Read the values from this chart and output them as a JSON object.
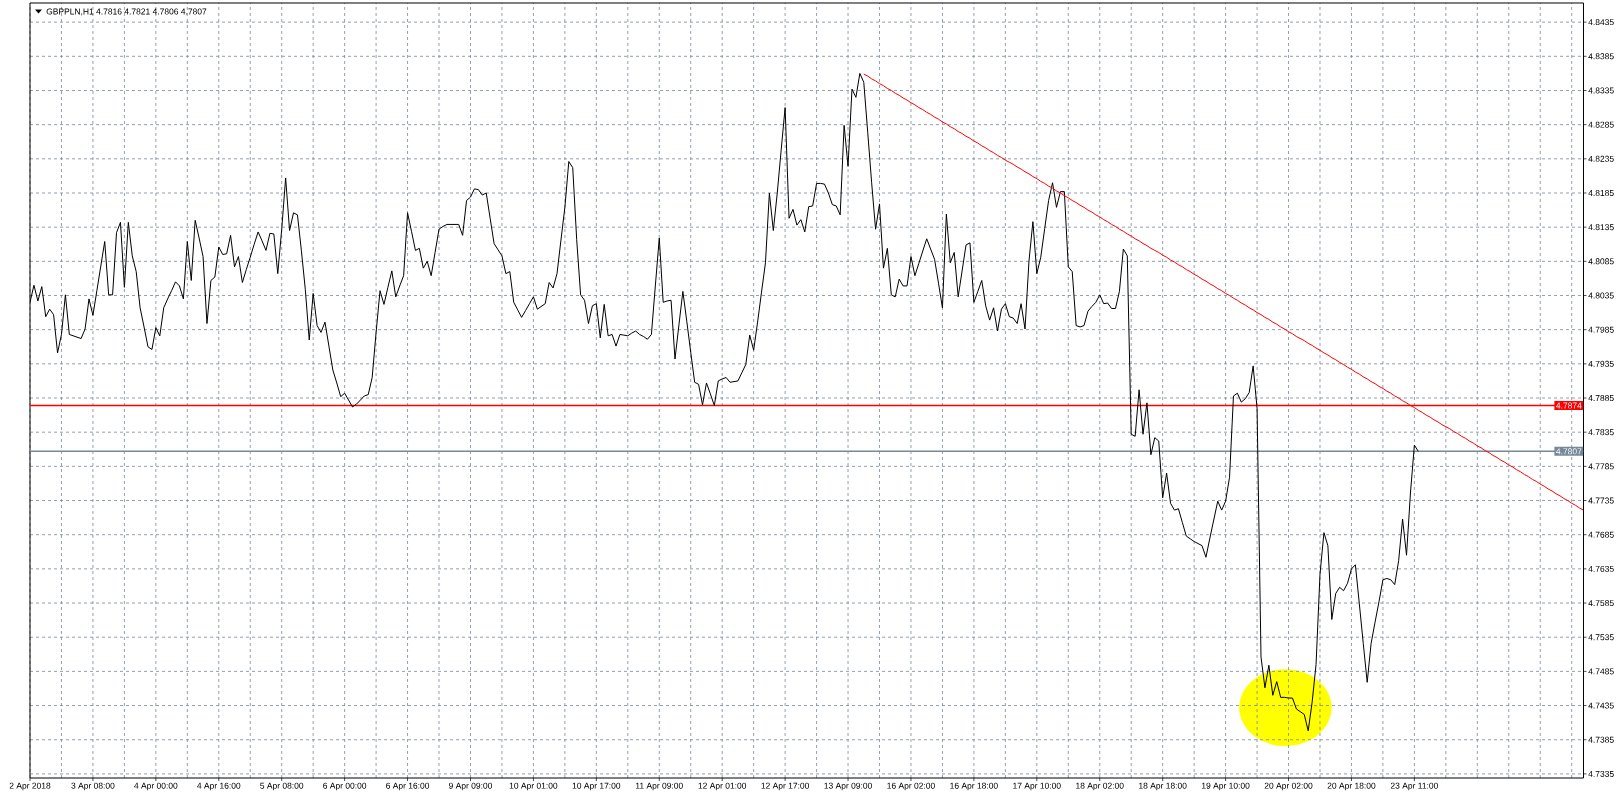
{
  "chart_data": {
    "type": "line",
    "title": "GBPPLN,H1 4.7816 4.7821 4.7806 4.7807",
    "categories": [
      "2 Apr 2018",
      null,
      null,
      null,
      null,
      null,
      null,
      null,
      null,
      null,
      null,
      null,
      null,
      null,
      null,
      null,
      "3 Apr 08:00",
      null,
      null,
      null,
      null,
      null,
      null,
      null,
      null,
      null,
      null,
      null,
      null,
      null,
      null,
      null,
      "4 Apr 00:00",
      null,
      null,
      null,
      null,
      null,
      null,
      null,
      null,
      null,
      null,
      null,
      null,
      null,
      null,
      null,
      "4 Apr 16:00",
      null,
      null,
      null,
      null,
      null,
      null,
      null,
      null,
      null,
      null,
      null,
      null,
      null,
      null,
      null,
      "5 Apr 08:00",
      null,
      null,
      null,
      null,
      null,
      null,
      null,
      null,
      null,
      null,
      null,
      null,
      null,
      null,
      null,
      "6 Apr 00:00",
      null,
      null,
      null,
      null,
      null,
      null,
      null,
      null,
      null,
      null,
      null,
      null,
      null,
      null,
      null,
      "6 Apr 16:00",
      null,
      null,
      null,
      null,
      null,
      null,
      null,
      null,
      null,
      null,
      null,
      null,
      null,
      null,
      null,
      "9 Apr 09:00",
      null,
      null,
      null,
      null,
      null,
      null,
      null,
      null,
      null,
      null,
      null,
      null,
      null,
      null,
      null,
      "10 Apr 01:00",
      null,
      null,
      null,
      null,
      null,
      null,
      null,
      null,
      null,
      null,
      null,
      null,
      null,
      null,
      null,
      "10 Apr 17:00",
      null,
      null,
      null,
      null,
      null,
      null,
      null,
      null,
      null,
      null,
      null,
      null,
      null,
      null,
      null,
      "11 Apr 09:00",
      null,
      null,
      null,
      null,
      null,
      null,
      null,
      null,
      null,
      null,
      null,
      null,
      null,
      null,
      null,
      "12 Apr 01:00",
      null,
      null,
      null,
      null,
      null,
      null,
      null,
      null,
      null,
      null,
      null,
      null,
      null,
      null,
      null,
      "12 Apr 17:00",
      null,
      null,
      null,
      null,
      null,
      null,
      null,
      null,
      null,
      null,
      null,
      null,
      null,
      null,
      null,
      "13 Apr 09:00",
      null,
      null,
      null,
      null,
      null,
      null,
      null,
      null,
      null,
      null,
      null,
      null,
      null,
      null,
      null,
      "16 Apr 02:00",
      null,
      null,
      null,
      null,
      null,
      null,
      null,
      null,
      null,
      null,
      null,
      null,
      null,
      null,
      null,
      "16 Apr 18:00",
      null,
      null,
      null,
      null,
      null,
      null,
      null,
      null,
      null,
      null,
      null,
      null,
      null,
      null,
      null,
      "17 Apr 10:00",
      null,
      null,
      null,
      null,
      null,
      null,
      null,
      null,
      null,
      null,
      null,
      null,
      null,
      null,
      null,
      "18 Apr 02:00",
      null,
      null,
      null,
      null,
      null,
      null,
      null,
      null,
      null,
      null,
      null,
      null,
      null,
      null,
      null,
      "18 Apr 18:00",
      null,
      null,
      null,
      null,
      null,
      null,
      null,
      null,
      null,
      null,
      null,
      null,
      null,
      null,
      null,
      "19 Apr 10:00",
      null,
      null,
      null,
      null,
      null,
      null,
      null,
      null,
      null,
      null,
      null,
      null,
      null,
      null,
      null,
      "20 Apr 02:00",
      null,
      null,
      null,
      null,
      null,
      null,
      null,
      null,
      null,
      null,
      null,
      null,
      null,
      null,
      null,
      "20 Apr 18:00",
      null,
      null,
      null,
      null,
      null,
      null,
      null,
      null,
      null,
      null,
      null,
      null,
      null,
      null,
      null,
      "23 Apr 11:00",
      null,
      null,
      null,
      null,
      null,
      null,
      null,
      null,
      null,
      null,
      null,
      null,
      null,
      null,
      null,
      null,
      null,
      null,
      null,
      null,
      null,
      null,
      null,
      null,
      null,
      null,
      null,
      null,
      null,
      null,
      null,
      null,
      null,
      null,
      null,
      null,
      null,
      null,
      null,
      null,
      null,
      null,
      null
    ],
    "ylim": [
      4.7329,
      4.8463
    ],
    "yticks": [
      4.7335,
      4.7385,
      4.7435,
      4.7485,
      4.7535,
      4.7585,
      4.7635,
      4.7685,
      4.7735,
      4.7785,
      4.7835,
      4.7885,
      4.7935,
      4.7985,
      4.8035,
      4.8085,
      4.8135,
      4.8185,
      4.8235,
      4.8285,
      4.8335,
      4.8385,
      4.8435
    ],
    "grid": true,
    "ref_lines": [
      {
        "axis": "y",
        "value": 4.7874,
        "label": "4.7874",
        "color": "#ff0000"
      },
      {
        "axis": "y",
        "value": 4.7807,
        "label": "4.7807",
        "color": "#778899"
      }
    ],
    "series": [
      {
        "color": "#000000",
        "values": [
          4.8025,
          4.805,
          4.8027,
          4.8048,
          4.8004,
          4.8015,
          4.8007,
          4.7951,
          4.7978,
          4.8036,
          4.7978,
          4.7976,
          4.7974,
          4.7972,
          4.7986,
          4.803,
          4.8006,
          4.8042,
          4.8078,
          4.8114,
          4.8036,
          4.8036,
          4.8127,
          4.8142,
          4.8047,
          4.8142,
          4.8093,
          4.807,
          4.8017,
          4.7989,
          4.796,
          4.7956,
          4.7988,
          4.7976,
          4.8017,
          4.803,
          4.8042,
          4.8055,
          4.8049,
          4.803,
          4.8114,
          4.8057,
          4.8145,
          4.8119,
          4.8092,
          4.7994,
          4.8057,
          4.8062,
          4.8106,
          4.8095,
          4.8096,
          4.8123,
          4.8077,
          4.8092,
          4.8054,
          4.8073,
          4.8091,
          4.811,
          4.8128,
          4.8115,
          4.8101,
          4.8126,
          4.8125,
          4.8067,
          4.8132,
          4.8207,
          4.813,
          4.8156,
          4.8153,
          4.8101,
          4.8044,
          4.797,
          4.8038,
          4.7991,
          4.7981,
          4.7996,
          4.7961,
          4.7926,
          4.7907,
          4.7887,
          4.7892,
          4.7882,
          4.7872,
          4.7876,
          4.7882,
          4.7888,
          4.789,
          4.7915,
          4.7981,
          4.8042,
          4.8022,
          4.8047,
          4.8071,
          4.8033,
          4.8049,
          4.8064,
          4.8156,
          4.8129,
          4.8101,
          4.8104,
          4.8075,
          4.8085,
          4.8064,
          4.8098,
          4.8132,
          4.8136,
          4.8139,
          4.8139,
          4.8139,
          4.8139,
          4.8123,
          4.8174,
          4.8179,
          4.8191,
          4.819,
          4.8182,
          4.8185,
          4.8148,
          4.8111,
          4.8102,
          4.8093,
          4.8067,
          4.807,
          4.8025,
          4.8014,
          4.8003,
          4.8013,
          4.8023,
          4.8033,
          4.8015,
          4.8019,
          4.8023,
          4.8054,
          4.8046,
          4.8067,
          4.8116,
          4.8164,
          4.8231,
          4.8222,
          4.8117,
          4.8036,
          4.8028,
          4.7994,
          4.802,
          4.8023,
          4.7973,
          4.8022,
          4.7976,
          4.7978,
          4.7961,
          4.7978,
          4.7977,
          4.7976,
          4.798,
          4.7983,
          4.7978,
          4.7975,
          4.7971,
          4.7978,
          4.8049,
          4.8119,
          4.8025,
          4.8027,
          4.8028,
          4.7942,
          4.7992,
          4.8041,
          4.7997,
          4.7952,
          4.7908,
          4.7905,
          4.7875,
          4.7907,
          4.7891,
          4.7874,
          4.791,
          4.7913,
          4.7915,
          4.7908,
          4.7909,
          4.791,
          4.7922,
          4.7934,
          4.7977,
          4.7955,
          4.7996,
          4.804,
          4.8083,
          4.8185,
          4.813,
          4.8185,
          4.8248,
          4.831,
          4.8148,
          4.8161,
          4.8138,
          4.8146,
          4.8128,
          4.8165,
          4.8166,
          4.8199,
          4.8199,
          4.8198,
          4.8185,
          4.8168,
          4.8166,
          4.8153,
          4.8284,
          4.8224,
          4.8337,
          4.8325,
          4.836,
          4.8347,
          4.8274,
          4.82,
          4.8132,
          4.8169,
          4.8075,
          4.8104,
          4.8036,
          4.8033,
          4.8059,
          4.8049,
          4.8049,
          4.8092,
          4.8064,
          4.8082,
          4.81,
          4.8118,
          4.8103,
          4.8088,
          4.8053,
          4.8017,
          4.8154,
          4.8083,
          4.8098,
          4.8033,
          4.8071,
          4.8109,
          4.8112,
          4.8025,
          4.8041,
          4.8057,
          4.802,
          4.7999,
          4.8017,
          4.7983,
          4.8015,
          4.8023,
          4.8004,
          4.8002,
          4.7994,
          4.8023,
          4.7986,
          4.8085,
          4.8143,
          4.8067,
          4.8091,
          4.8133,
          4.8174,
          4.82,
          4.8164,
          4.8187,
          4.8187,
          4.8077,
          4.807,
          4.7991,
          4.7989,
          4.7991,
          4.8012,
          4.8019,
          4.8025,
          4.8036,
          4.8023,
          4.8024,
          4.8016,
          4.8016,
          4.8041,
          4.8103,
          4.8093,
          4.7832,
          4.7829,
          4.7897,
          4.7832,
          4.7878,
          4.7802,
          4.7827,
          4.7822,
          4.7739,
          4.7775,
          4.7731,
          4.7721,
          4.7723,
          4.7703,
          4.7683,
          4.7679,
          4.7675,
          4.7672,
          4.7669,
          4.7652,
          4.768,
          4.7707,
          4.7734,
          4.7721,
          4.7734,
          4.7769,
          4.7888,
          4.7892,
          4.7879,
          4.7884,
          4.7893,
          4.7932,
          4.787,
          4.7506,
          4.7461,
          4.7494,
          4.745,
          4.747,
          4.7447,
          4.7447,
          4.7446,
          4.7446,
          4.743,
          4.7426,
          4.7422,
          4.7398,
          4.744,
          4.7495,
          4.7627,
          4.7688,
          4.7669,
          4.7561,
          4.7599,
          4.7608,
          4.7603,
          4.7614,
          4.7635,
          4.7641,
          4.7584,
          4.7526,
          4.7469,
          4.7526,
          4.7557,
          4.7587,
          4.7619,
          4.7621,
          4.7619,
          4.7612,
          4.7647,
          4.7708,
          4.7655,
          4.7746,
          4.7816,
          4.7807,
          null,
          null,
          null,
          null,
          null,
          null,
          null,
          null,
          null,
          null,
          null,
          null,
          null,
          null,
          null,
          null,
          null,
          null,
          null,
          null,
          null,
          null,
          null,
          null,
          null,
          null,
          null,
          null,
          null,
          null,
          null,
          null,
          null,
          null,
          null,
          null,
          null,
          null,
          null,
          null,
          null,
          null
        ]
      },
      {
        "color": "#ff0000",
        "values": [
          null,
          null,
          null,
          null,
          null,
          null,
          null,
          null,
          null,
          null,
          null,
          null,
          null,
          null,
          null,
          null,
          null,
          null,
          null,
          null,
          null,
          null,
          null,
          null,
          null,
          null,
          null,
          null,
          null,
          null,
          null,
          null,
          null,
          null,
          null,
          null,
          null,
          null,
          null,
          null,
          null,
          null,
          null,
          null,
          null,
          null,
          null,
          null,
          null,
          null,
          null,
          null,
          null,
          null,
          null,
          null,
          null,
          null,
          null,
          null,
          null,
          null,
          null,
          null,
          null,
          null,
          null,
          null,
          null,
          null,
          null,
          null,
          null,
          null,
          null,
          null,
          null,
          null,
          null,
          null,
          null,
          null,
          null,
          null,
          null,
          null,
          null,
          null,
          null,
          null,
          null,
          null,
          null,
          null,
          null,
          null,
          null,
          null,
          null,
          null,
          null,
          null,
          null,
          null,
          null,
          null,
          null,
          null,
          null,
          null,
          null,
          null,
          null,
          null,
          null,
          null,
          null,
          null,
          null,
          null,
          null,
          null,
          null,
          null,
          null,
          null,
          null,
          null,
          null,
          null,
          null,
          null,
          null,
          null,
          null,
          null,
          null,
          null,
          null,
          null,
          null,
          null,
          null,
          null,
          null,
          null,
          null,
          null,
          null,
          null,
          null,
          null,
          null,
          null,
          null,
          null,
          null,
          null,
          null,
          null,
          null,
          null,
          null,
          null,
          null,
          null,
          null,
          null,
          null,
          null,
          null,
          null,
          null,
          null,
          null,
          null,
          null,
          null,
          null,
          null,
          null,
          null,
          null,
          null,
          null,
          null,
          null,
          null,
          null,
          null,
          null,
          null,
          null,
          null,
          null,
          null,
          null,
          null,
          null,
          null,
          null,
          null,
          null,
          null,
          null,
          null,
          null,
          null,
          null,
          null,
          null,
          null,
          4.8359,
          4.8356,
          4.8352,
          4.8349,
          4.8345,
          4.8342,
          4.8338,
          4.8335,
          4.8331,
          4.8328,
          4.8324,
          4.8321,
          4.8317,
          4.8314,
          4.831,
          4.8307,
          4.8303,
          4.83,
          4.8296,
          4.8293,
          4.8289,
          4.8286,
          4.8282,
          4.8279,
          4.8275,
          4.8272,
          4.8268,
          4.8265,
          4.8261,
          4.8258,
          4.8254,
          4.8251,
          4.8247,
          4.8244,
          4.824,
          4.8237,
          4.8233,
          4.823,
          4.8227,
          4.8223,
          4.822,
          4.8216,
          4.8213,
          4.8209,
          4.8206,
          4.8202,
          4.8199,
          4.8195,
          4.8192,
          4.8188,
          4.8185,
          4.8181,
          4.8178,
          4.8174,
          4.8171,
          4.8167,
          4.8164,
          4.816,
          4.8157,
          4.8153,
          4.815,
          4.8146,
          4.8143,
          4.8139,
          4.8136,
          4.8132,
          4.8129,
          4.8125,
          4.8122,
          4.8118,
          4.8115,
          4.8111,
          4.8108,
          4.8104,
          4.8101,
          4.8098,
          4.8094,
          4.8091,
          4.8087,
          4.8084,
          4.808,
          4.8077,
          4.8073,
          4.807,
          4.8066,
          4.8063,
          4.8059,
          4.8056,
          4.8052,
          4.8049,
          4.8045,
          4.8042,
          4.8038,
          4.8035,
          4.8031,
          4.8028,
          4.8024,
          4.8021,
          4.8017,
          4.8014,
          4.801,
          4.8007,
          4.8003,
          4.8,
          4.7996,
          4.7993,
          4.7989,
          4.7986,
          4.7982,
          4.7979,
          4.7975,
          4.7972,
          4.7969,
          4.7965,
          4.7962,
          4.7958,
          4.7955,
          4.7951,
          4.7948,
          4.7944,
          4.7941,
          4.7937,
          4.7934,
          4.793,
          4.7927,
          4.7923,
          4.792,
          4.7916,
          4.7913,
          4.7909,
          4.7906,
          4.7902,
          4.7899,
          4.7895,
          4.7892,
          4.7888,
          4.7885,
          4.7881,
          4.7878,
          4.7874,
          4.7871,
          4.7867,
          4.7864,
          4.786,
          4.7857,
          4.7853,
          4.785,
          4.7846,
          4.7843,
          4.784,
          4.7836,
          4.7833,
          4.7829,
          4.7826,
          4.7822,
          4.7819,
          4.7815,
          4.7812,
          4.7808,
          4.7805,
          4.7801,
          4.7798,
          4.7794,
          4.7791,
          4.7787,
          4.7784,
          4.778,
          4.7777,
          4.7773,
          4.777,
          4.7766,
          4.7763,
          4.7759,
          4.7756,
          4.7752,
          4.7749,
          4.7745,
          4.7742,
          4.7738,
          4.7735,
          4.7731,
          4.7728,
          4.7724,
          4.7721
        ]
      }
    ]
  }
}
